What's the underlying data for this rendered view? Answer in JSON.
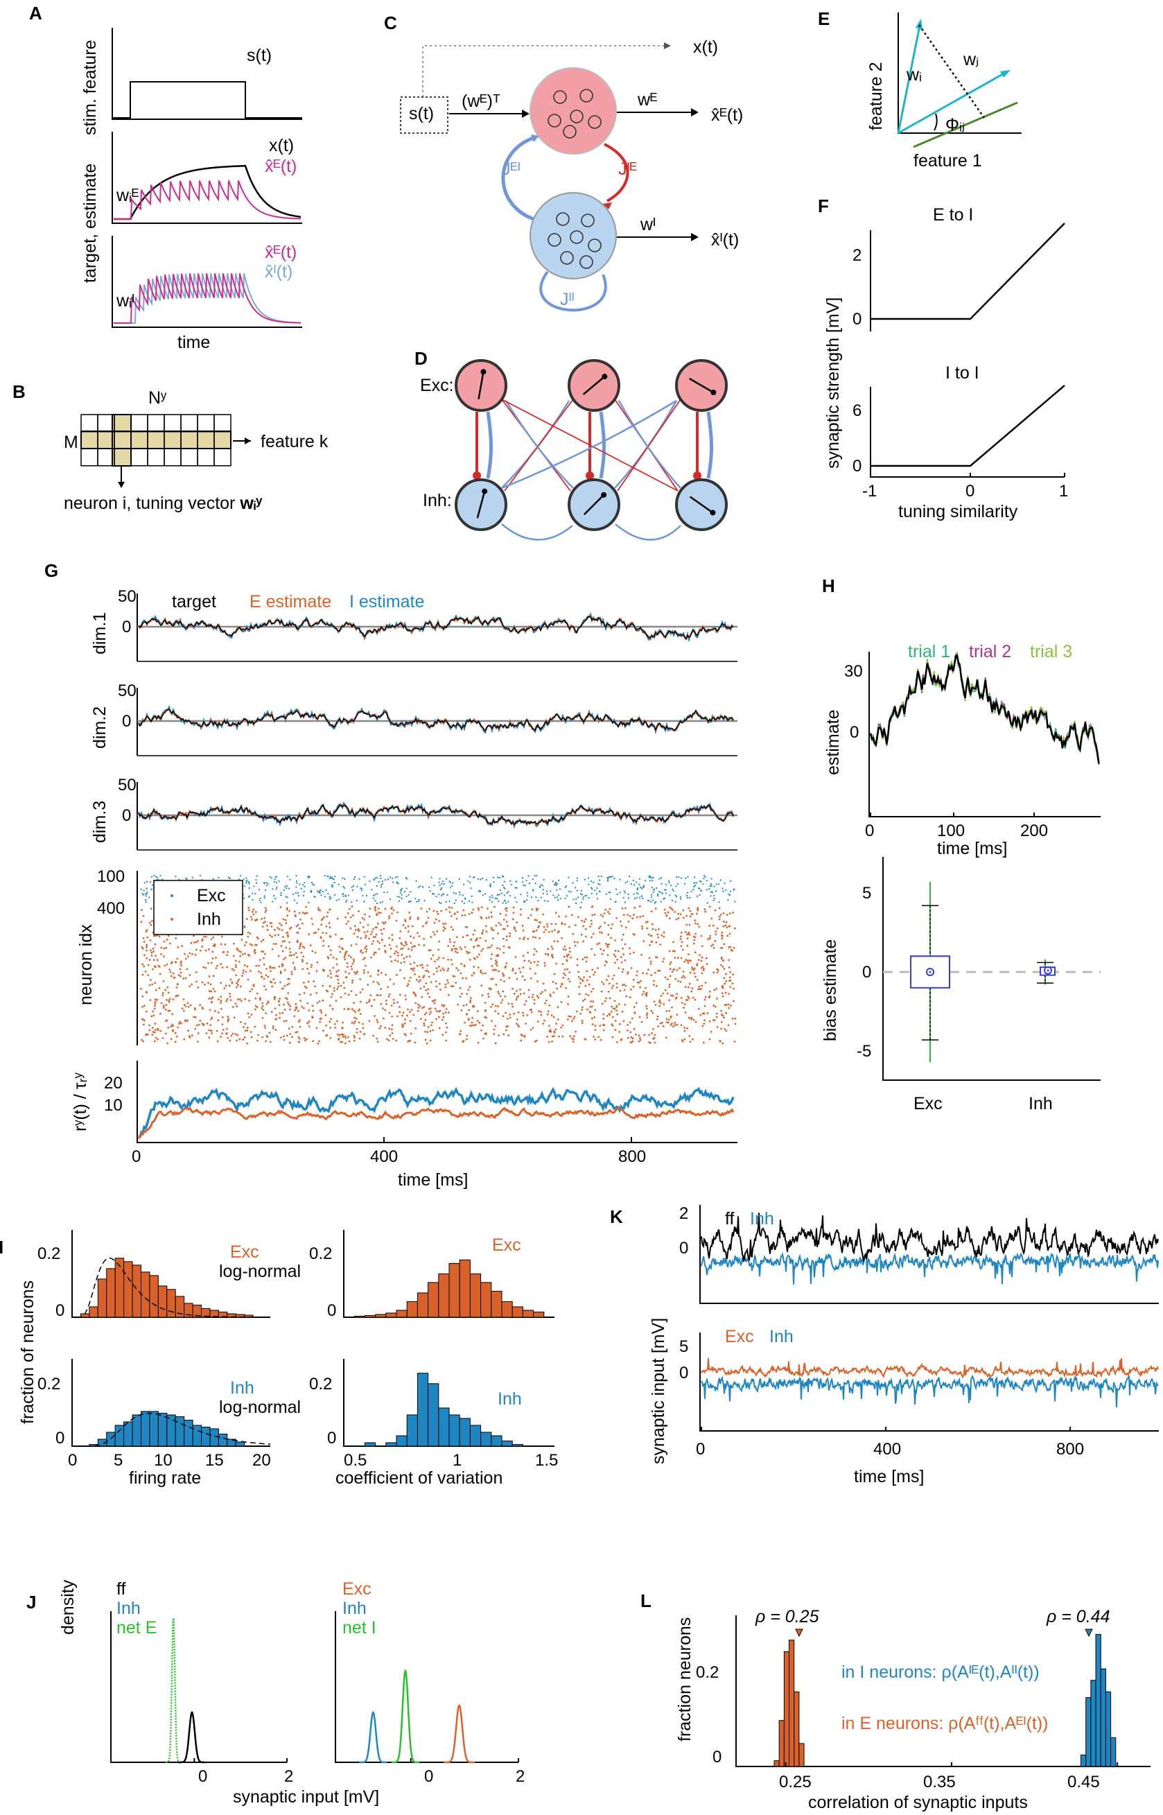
{
  "colors": {
    "exc": "#d9622b",
    "inh": "#1f86c2",
    "target": "#000000",
    "magenta": "#cc2b8f",
    "ltblue": "#7ea7d8",
    "green": "#2bbf2b",
    "green_t1": "#2fb57a",
    "purple_t2": "#a8368f",
    "olive_t3": "#8cbf3f",
    "pinkcirc": "#f2a0a6",
    "bluecirc": "#b8d4ef",
    "red_conn": "#d42a2a",
    "blue_conn": "#7096d8",
    "tan": "#e6d9a8"
  },
  "panels": {
    "A": "A",
    "B": "B",
    "C": "C",
    "D": "D",
    "E": "E",
    "F": "F",
    "G": "G",
    "H": "H",
    "I": "I",
    "J": "J",
    "K": "K",
    "L": "L"
  },
  "A": {
    "s_label": "s(t)",
    "y1": "stim. feature",
    "x_label": "x(t)",
    "xhatE": "x̂ᴱ(t)",
    "wE": "wᵢᴱ",
    "y2": "target, estimate",
    "xhatE2": "x̂ᴱ(t)",
    "xhatI2": "x̂ᴵ(t)",
    "wI": "wᵢᴵ",
    "xlabel": "time"
  },
  "B": {
    "N": "Nʸ",
    "M": "M",
    "feature": "feature k",
    "neuron": "neuron i, tuning vector ",
    "wvec": "wᵢʸ"
  },
  "C": {
    "x_top": "x(t)",
    "s": "s(t)",
    "wET": "(wᴱ)ᵀ",
    "wE": "wᴱ",
    "xhatE": "x̂ᴱ(t)",
    "JEI": "Jᴱᴵ",
    "JIE": "Jᴵᴱ",
    "wI": "wᴵ",
    "xhatI": "x̂ᴵ(t)",
    "JII": "Jᴵᴵ"
  },
  "D": {
    "exc": "Exc:",
    "inh": "Inh:"
  },
  "E": {
    "f2": "feature 2",
    "f1": "feature 1",
    "wi": "wᵢ",
    "wj": "wⱼ",
    "phi": "Φᵢⱼ"
  },
  "F": {
    "t1": "E to I",
    "t2": "I to I",
    "ylabel": "synaptic strength [mV]",
    "xlabel": "tuning similarity",
    "yt1": [
      "0",
      "2"
    ],
    "yt2": [
      "0",
      "6"
    ],
    "xt": [
      "-1",
      "0",
      "1"
    ]
  },
  "G": {
    "legend_target": "target",
    "legend_E": "E estimate",
    "legend_I": "I estimate",
    "dims": [
      "dim.1",
      "dim.2",
      "dim.3"
    ],
    "yt": [
      "50",
      "0"
    ],
    "raster_ylabel": "neuron idx",
    "raster_yt": [
      "100",
      "400"
    ],
    "leg_exc": "Exc",
    "leg_inh": "Inh",
    "rate_ylabel": "rʸ(t) / τᵣʸ",
    "rate_yt": [
      "20",
      "10"
    ],
    "xt": [
      "0",
      "400",
      "800"
    ],
    "xlabel": "time [ms]"
  },
  "H": {
    "trial1": "trial 1",
    "trial2": "trial 2",
    "trial3": "trial 3",
    "ylabel": "estimate",
    "yt": [
      "30",
      "0"
    ],
    "xt": [
      "0",
      "100",
      "200"
    ],
    "xlabel": "time [ms]",
    "ylabel2": "bias estimate",
    "yt2": [
      "5",
      "0",
      "-5"
    ],
    "cats": [
      "Exc",
      "Inh"
    ]
  },
  "I": {
    "exc": "Exc",
    "lognormal": "log-normal",
    "inh": "Inh",
    "ylabel": "fraction of neurons",
    "yt": [
      "0.2",
      "0"
    ],
    "xt_fr": [
      "0",
      "5",
      "10",
      "15",
      "20"
    ],
    "xlabel_fr": "firing rate",
    "xt_cv": [
      "0.5",
      "1",
      "1.5"
    ],
    "xlabel_cv": "coefficient of variation"
  },
  "J": {
    "ff": "ff",
    "inh": "Inh",
    "netE": "net E",
    "exc": "Exc",
    "inh2": "Inh",
    "netI": "net I",
    "ylabel": "density",
    "xt": [
      "0",
      "2"
    ],
    "xlabel": "synaptic input [mV]"
  },
  "K": {
    "ff": "ff",
    "inh": "Inh",
    "exc": "Exc",
    "inh2": "Inh",
    "ylabel": "synaptic input [mV]",
    "yt1": [
      "2",
      "0"
    ],
    "yt2": [
      "5",
      "0"
    ],
    "xt": [
      "0",
      "400",
      "800"
    ],
    "xlabel": "time [ms]"
  },
  "L": {
    "rho1": "ρ = 0.25",
    "rho2": "ρ = 0.44",
    "ylabel": "fraction neurons",
    "yt": [
      "0.2",
      "0"
    ],
    "xt": [
      "0.25",
      "0.35",
      "0.45"
    ],
    "xlabel": "correlation of synaptic inputs",
    "text_I": "in I neurons: ρ(Aᴵᴱ(t),Aᴵᴵ(t))",
    "text_E": "in E neurons: ρ(Aᶠᶠ(t),Aᴱᴵ(t))"
  },
  "chart_data": [
    {
      "type": "bar",
      "title": "I: Exc firing rate",
      "xlabel": "firing rate",
      "ylabel": "fraction of neurons",
      "bin_start": 1,
      "bin_width": 1,
      "values": [
        0.01,
        0.03,
        0.11,
        0.14,
        0.17,
        0.16,
        0.15,
        0.13,
        0.12,
        0.09,
        0.08,
        0.06,
        0.04,
        0.035,
        0.025,
        0.02,
        0.015,
        0.01,
        0.008,
        0.006
      ],
      "ylim": [
        0,
        0.25
      ],
      "xlim": [
        0,
        23
      ]
    },
    {
      "type": "bar",
      "title": "I: Exc coefficient of variation",
      "xlabel": "coefficient of variation",
      "bin_start": 0.55,
      "bin_width": 0.05,
      "values": [
        0.003,
        0.005,
        0.008,
        0.012,
        0.02,
        0.045,
        0.07,
        0.1,
        0.125,
        0.155,
        0.165,
        0.125,
        0.1,
        0.075,
        0.045,
        0.03,
        0.02,
        0.015
      ],
      "ylim": [
        0,
        0.25
      ],
      "xlim": [
        0.5,
        1.5
      ]
    },
    {
      "type": "bar",
      "title": "I: Inh firing rate",
      "xlabel": "firing rate",
      "bin_start": 2,
      "bin_width": 1,
      "values": [
        0.005,
        0.02,
        0.04,
        0.06,
        0.07,
        0.09,
        0.1,
        0.1,
        0.095,
        0.09,
        0.085,
        0.075,
        0.06,
        0.055,
        0.05,
        0.035,
        0.02,
        0.012
      ],
      "ylim": [
        0,
        0.25
      ],
      "xlim": [
        0,
        23
      ]
    },
    {
      "type": "bar",
      "title": "I: Inh coefficient of variation",
      "xlabel": "coefficient of variation",
      "bin_start": 0.6,
      "bin_width": 0.05,
      "values": [
        0.01,
        0,
        0.01,
        0.03,
        0.09,
        0.21,
        0.18,
        0.11,
        0.09,
        0.08,
        0.06,
        0.04,
        0.03,
        0.015,
        0.005
      ],
      "ylim": [
        0,
        0.25
      ],
      "xlim": [
        0.5,
        1.5
      ]
    },
    {
      "type": "bar",
      "title": "L: E neurons correlation",
      "xlabel": "correlation of synaptic inputs",
      "ylabel": "fraction neurons",
      "bin_start": 0.243,
      "bin_width": 0.003,
      "values": [
        0.01,
        0.08,
        0.2,
        0.22,
        0.13,
        0.04
      ],
      "ylim": [
        0,
        0.28
      ],
      "xlim": [
        0.22,
        0.47
      ]
    },
    {
      "type": "bar",
      "title": "L: I neurons correlation",
      "bin_start": 0.428,
      "bin_width": 0.003,
      "values": [
        0.02,
        0.12,
        0.15,
        0.23,
        0.17,
        0.13,
        0.05
      ],
      "ylim": [
        0,
        0.28
      ],
      "xlim": [
        0.22,
        0.47
      ]
    },
    {
      "type": "line",
      "title": "F: E to I",
      "x": [
        -1,
        0,
        1
      ],
      "y": [
        0,
        0,
        3
      ],
      "ylim": [
        -0.5,
        3
      ],
      "xlim": [
        -1,
        1
      ]
    },
    {
      "type": "line",
      "title": "F: I to I",
      "x": [
        -1,
        0,
        1
      ],
      "y": [
        0,
        0,
        9
      ],
      "ylim": [
        -1,
        9
      ],
      "xlim": [
        -1,
        1
      ]
    },
    {
      "type": "box",
      "title": "H: bias estimate",
      "categories": [
        "Exc",
        "Inh"
      ],
      "median": [
        0,
        0.1
      ],
      "q1": [
        -1,
        -0.2
      ],
      "q3": [
        1,
        0.3
      ],
      "whisker_low": [
        -4.3,
        -0.7
      ],
      "whisker_high": [
        4.2,
        0.6
      ],
      "ylim": [
        -7,
        7
      ]
    },
    {
      "type": "line",
      "title": "J: densities",
      "series": [
        {
          "name": "ff",
          "mean": -0.05
        },
        {
          "name": "Inh",
          "mean": -0.4
        },
        {
          "name": "net E",
          "mean": -0.45
        },
        {
          "name": "Exc",
          "mean": 0.9
        },
        {
          "name": "Inh ",
          "mean": -0.7
        },
        {
          "name": "net I",
          "mean": -0.1
        }
      ]
    }
  ]
}
